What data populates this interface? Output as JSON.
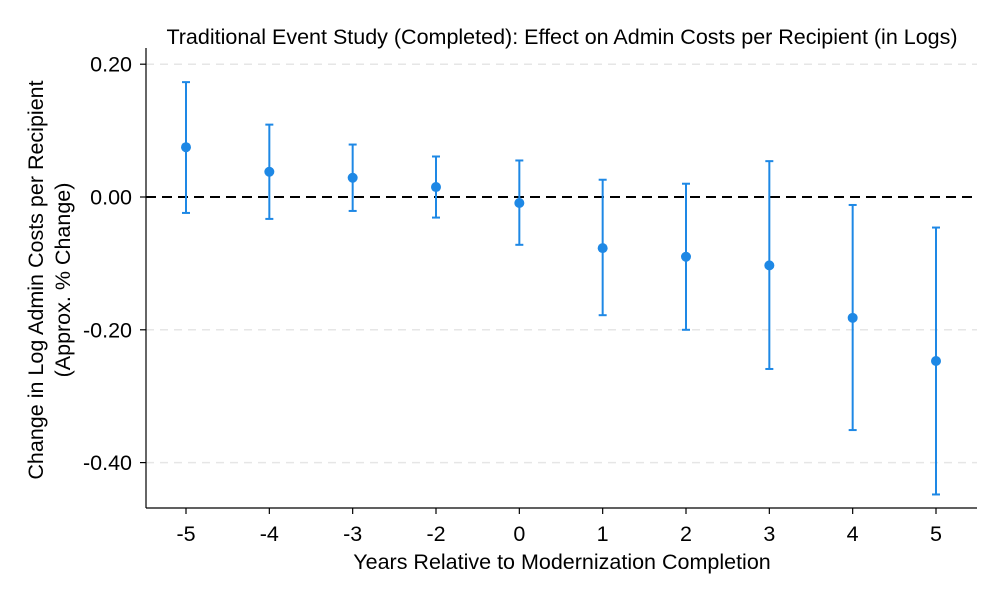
{
  "chart_data": {
    "type": "scatter",
    "title": "Traditional Event Study (Completed): Effect on Admin Costs per Recipient (in Logs)",
    "xlabel": "Years Relative to Modernization Completion",
    "ylabel_line1": "Change in Log Admin Costs per Recipient",
    "ylabel_line2": "(Approx. % Change)",
    "x_ticks": [
      "-5",
      "-4",
      "-3",
      "-2",
      "0",
      "1",
      "2",
      "3",
      "4",
      "5"
    ],
    "y_ticks": [
      "0.20",
      "0.00",
      "-0.20",
      "-0.40"
    ],
    "y_tick_values": [
      0.2,
      0.0,
      -0.2,
      -0.4
    ],
    "ylim": [
      -0.47,
      0.22
    ],
    "reference_line_y": 0.0,
    "grid": "horizontal-dashed",
    "series": [
      {
        "estimates": [
          0.075,
          0.038,
          0.029,
          0.015,
          -0.009,
          -0.077,
          -0.09,
          -0.103,
          -0.182,
          -0.247
        ],
        "ci_low": [
          -0.024,
          -0.033,
          -0.021,
          -0.031,
          -0.072,
          -0.178,
          -0.2,
          -0.259,
          -0.351,
          -0.448
        ],
        "ci_high": [
          0.173,
          0.109,
          0.079,
          0.061,
          0.055,
          0.026,
          0.02,
          0.054,
          -0.012,
          -0.046
        ]
      }
    ],
    "colors": {
      "marker": "#1e88e5",
      "reference_line": "#000000",
      "grid": "#e6e6e6"
    }
  }
}
